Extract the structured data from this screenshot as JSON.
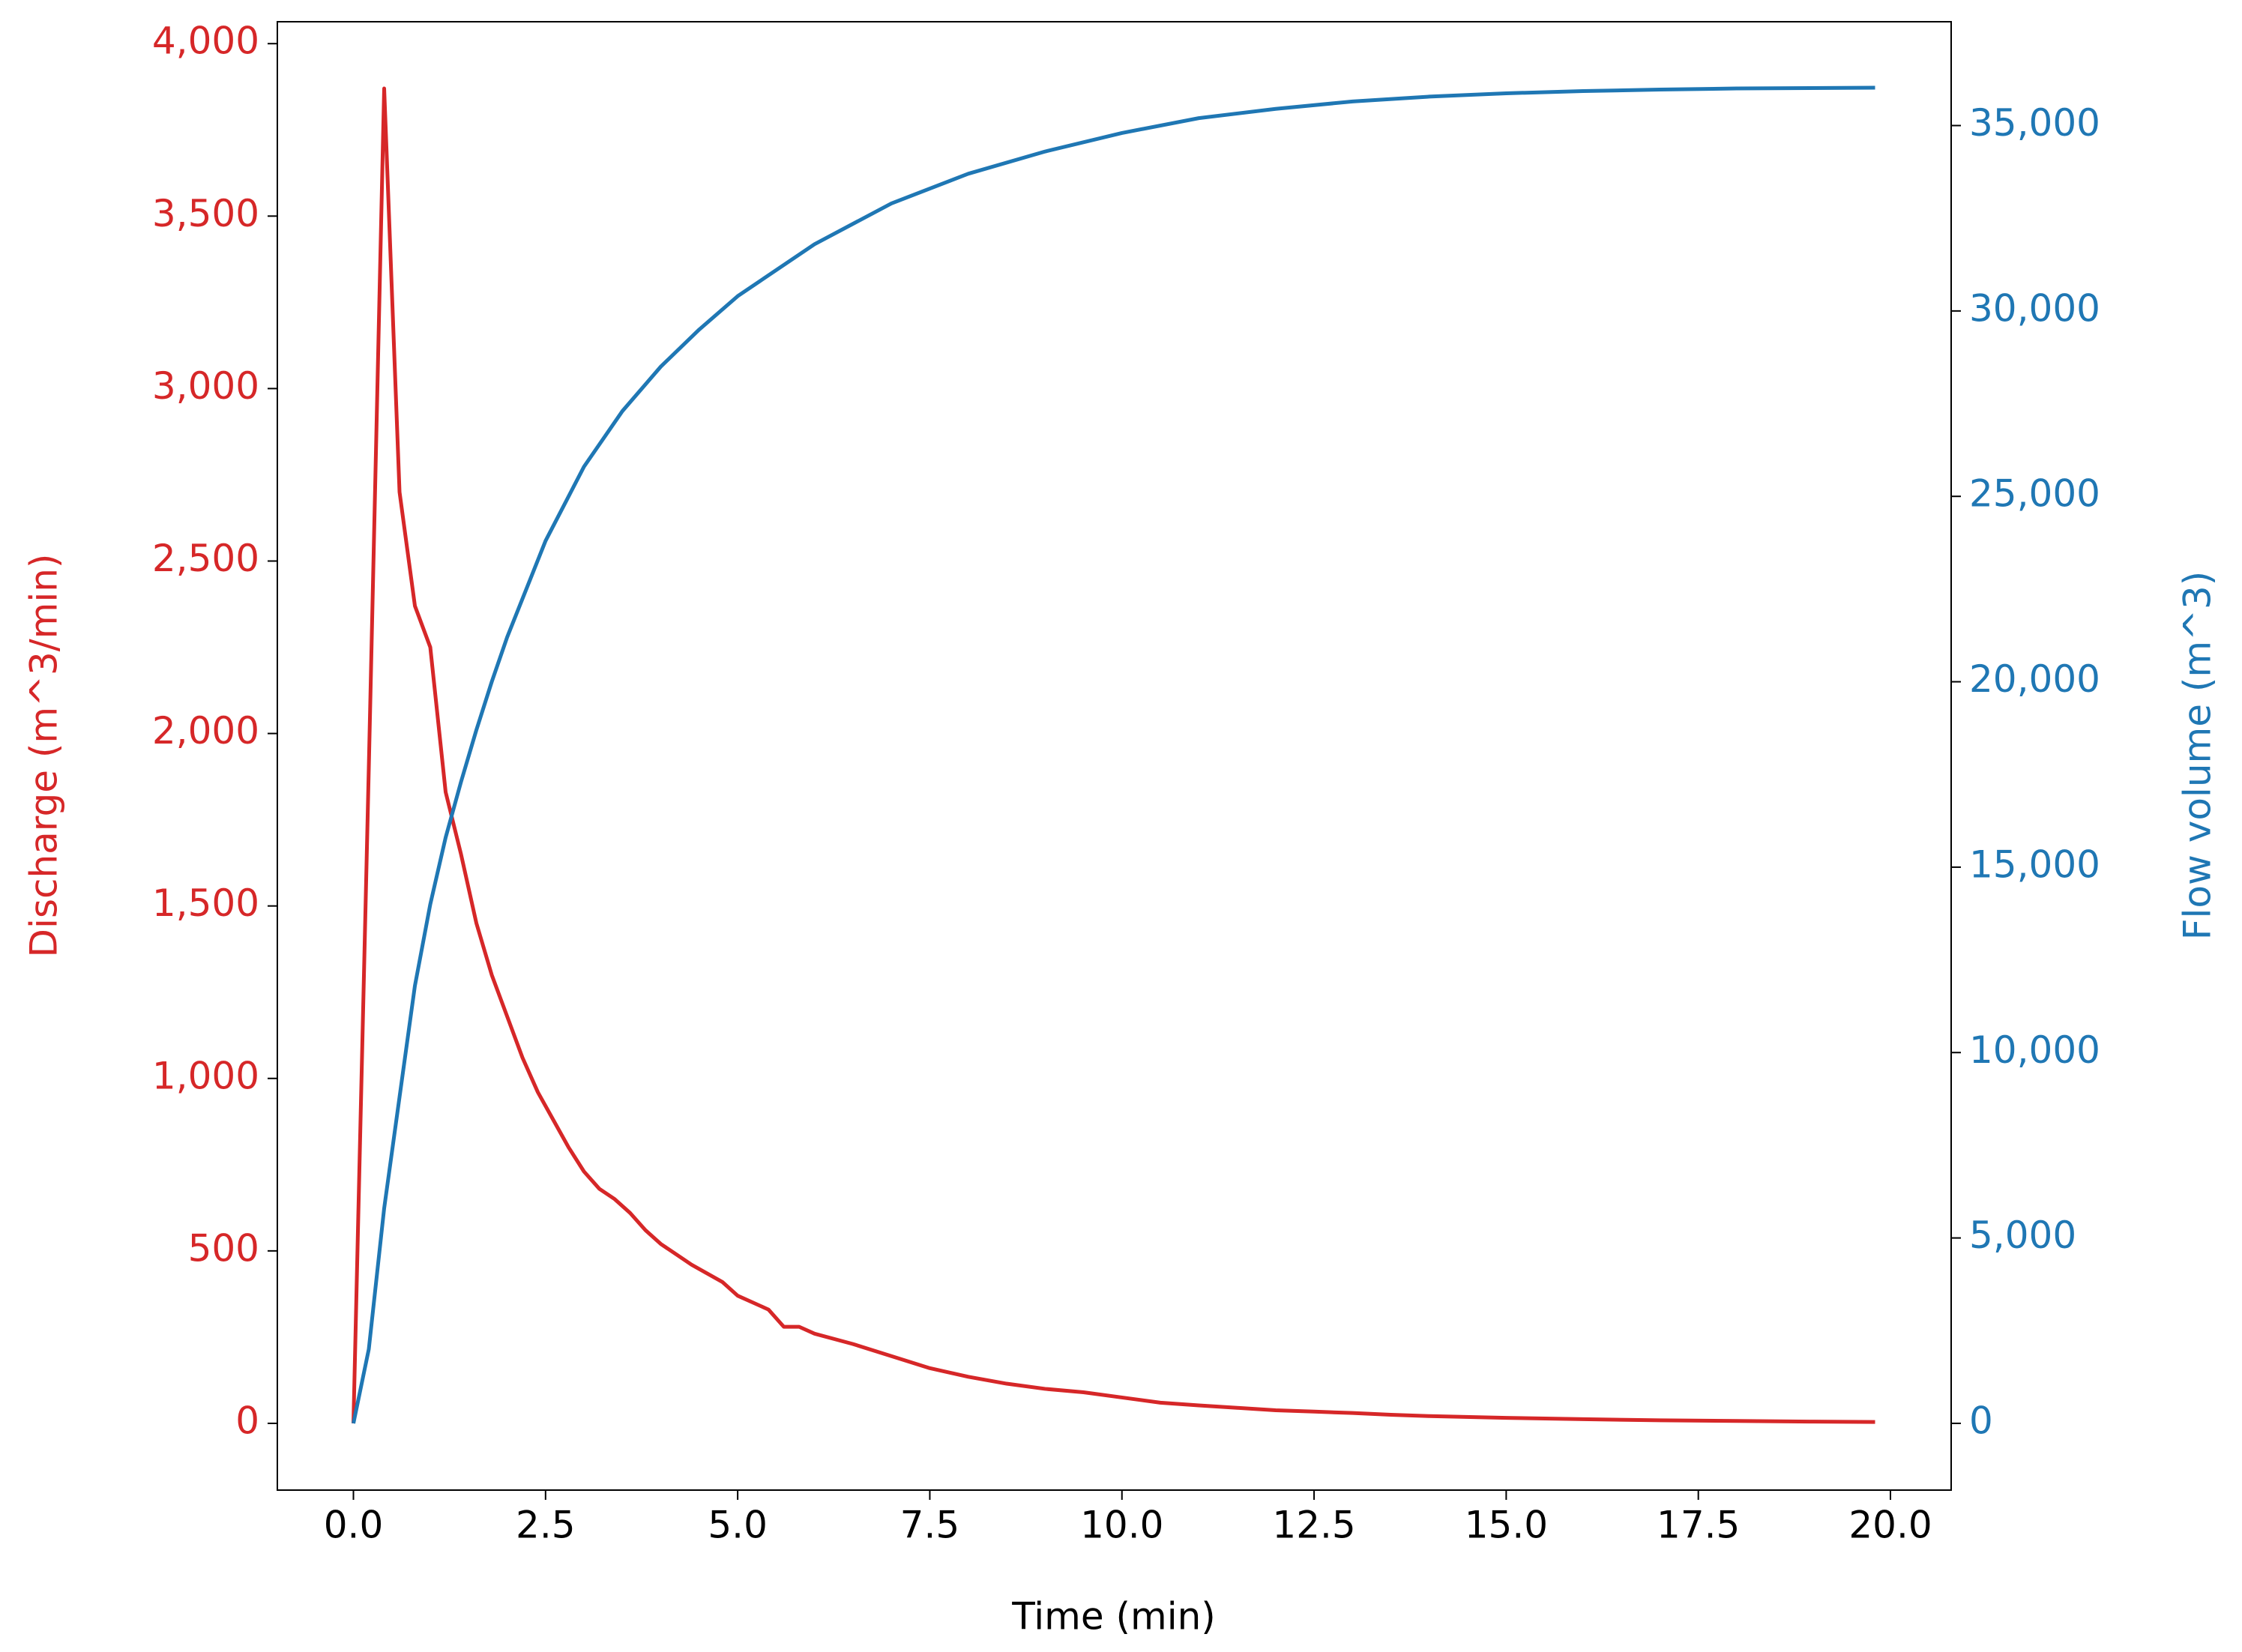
{
  "chart_data": {
    "type": "line",
    "xlabel": "Time (min)",
    "ylabel": "Discharge (m^3/min)",
    "y2label": "Flow volume (m^3)",
    "xlim": [
      -0.99,
      20.79
    ],
    "ylim": [
      -193.5,
      4063.5
    ],
    "y2lim": [
      -1800,
      37800
    ],
    "xticks": [
      {
        "value": 0,
        "label": "0.0"
      },
      2.5,
      {
        "value": 5,
        "label": "5.0"
      },
      7.5,
      {
        "value": 10,
        "label": "10.0"
      },
      12.5,
      {
        "value": 15,
        "label": "15.0"
      },
      17.5,
      {
        "value": 20,
        "label": "20.0"
      }
    ],
    "yticks": [
      0,
      500,
      {
        "value": 1000,
        "label": "1,000"
      },
      {
        "value": 1500,
        "label": "1,500"
      },
      {
        "value": 2000,
        "label": "2,000"
      },
      {
        "value": 2500,
        "label": "2,500"
      },
      {
        "value": 3000,
        "label": "3,000"
      },
      {
        "value": 3500,
        "label": "3,500"
      },
      {
        "value": 4000,
        "label": "4,000"
      }
    ],
    "y2ticks": [
      0,
      {
        "value": 5000,
        "label": "5,000"
      },
      {
        "value": 10000,
        "label": "10,000"
      },
      {
        "value": 15000,
        "label": "15,000"
      },
      {
        "value": 20000,
        "label": "20,000"
      },
      {
        "value": 25000,
        "label": "25,000"
      },
      {
        "value": 30000,
        "label": "30,000"
      },
      {
        "value": 35000,
        "label": "35,000"
      }
    ],
    "ylabel_color": "#d62728",
    "y2label_color": "#1f77b4",
    "series": [
      {
        "name": "Discharge",
        "color": "#d62728",
        "axis": "y",
        "x": [
          0,
          0.2,
          0.4,
          0.6,
          0.8,
          1.0,
          1.2,
          1.4,
          1.6,
          1.8,
          2.0,
          2.2,
          2.4,
          2.6,
          2.8,
          3.0,
          3.2,
          3.4,
          3.6,
          3.8,
          4.0,
          4.2,
          4.4,
          4.6,
          4.8,
          5.0,
          5.2,
          5.4,
          5.6,
          5.8,
          6.0,
          6.5,
          7.0,
          7.5,
          8.0,
          8.5,
          9.0,
          9.5,
          10.0,
          10.5,
          11.0,
          11.5,
          12.0,
          12.5,
          13.0,
          13.5,
          14.0,
          15.0,
          16.0,
          17.0,
          18.0,
          19.0,
          19.8
        ],
        "values": [
          0,
          1900,
          3870,
          2700,
          2370,
          2250,
          1830,
          1650,
          1450,
          1300,
          1180,
          1060,
          960,
          880,
          800,
          730,
          680,
          650,
          610,
          560,
          520,
          490,
          460,
          435,
          410,
          370,
          350,
          330,
          280,
          280,
          260,
          230,
          195,
          160,
          135,
          115,
          100,
          90,
          75,
          60,
          52,
          45,
          38,
          34,
          30,
          25,
          21,
          16,
          12,
          9,
          7,
          5,
          4
        ]
      },
      {
        "name": "Flow volume",
        "color": "#1f77b4",
        "axis": "y2",
        "x": [
          0,
          0.2,
          0.4,
          0.6,
          0.8,
          1.0,
          1.2,
          1.4,
          1.6,
          1.8,
          2.0,
          2.5,
          3.0,
          3.5,
          4.0,
          4.5,
          5.0,
          6.0,
          7.0,
          8.0,
          9.0,
          10.0,
          11.0,
          12.0,
          13.0,
          14.0,
          15.0,
          16.0,
          17.0,
          18.0,
          19.8
        ],
        "values": [
          0,
          2000,
          5800,
          8800,
          11800,
          14000,
          15800,
          17300,
          18700,
          20000,
          21200,
          23800,
          25800,
          27300,
          28500,
          29500,
          30400,
          31800,
          32900,
          33700,
          34300,
          34800,
          35200,
          35450,
          35650,
          35780,
          35870,
          35930,
          35970,
          36000,
          36020
        ]
      }
    ]
  }
}
